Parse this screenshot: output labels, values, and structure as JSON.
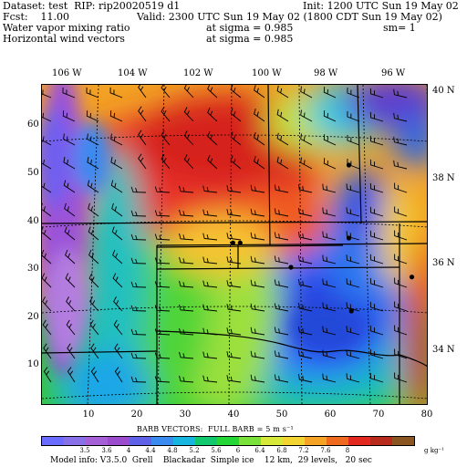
{
  "header": {
    "dataset": "Dataset: test  RIP: rip20020519 d1",
    "init": "Init: 1200 UTC Sun 19 May 02",
    "fcst": "Fcst:    11.00",
    "valid": "Valid: 2300 UTC Sun 19 May 02 (1800 CDT Sun 19 May 02)",
    "field1": "Water vapor mixing ratio",
    "field1_level": "at sigma = 0.985",
    "field1_sm": "sm= 1",
    "field2": "Horizontal wind vectors",
    "field2_level": "at sigma = 0.985"
  },
  "map": {
    "lon_labels": [
      "106 W",
      "104 W",
      "102 W",
      "100 W",
      "98 W",
      "96 W"
    ],
    "lat_labels": [
      "40 N",
      "38 N",
      "36 N",
      "34 N"
    ],
    "y_ticks": [
      "60",
      "50",
      "40",
      "30",
      "20",
      "10"
    ],
    "x_ticks": [
      "10",
      "20",
      "30",
      "40",
      "50",
      "60",
      "70",
      "80"
    ],
    "grid_range": {
      "x": [
        1,
        81
      ],
      "y": [
        1,
        67
      ]
    },
    "stations_grid": [
      [
        64.5,
        50.5
      ],
      [
        40.5,
        34.5
      ],
      [
        42,
        34.5
      ],
      [
        52.5,
        29.5
      ],
      [
        64.5,
        35.5
      ],
      [
        65,
        20.5
      ],
      [
        77.5,
        27.5
      ]
    ]
  },
  "barb_note": "BARB VECTORS:  FULL BARB = 5 m s⁻¹",
  "colorbar": {
    "labels": [
      "3.5",
      "3.6",
      "4",
      "4.4",
      "4.8",
      "5.2",
      "5.6",
      "6",
      "6.4",
      "6.8",
      "7.2",
      "7.6",
      "8"
    ],
    "units": "g kg⁻¹",
    "colors": [
      "#6a6bff",
      "#8870e8",
      "#a560d8",
      "#9b4ccc",
      "#5f62e8",
      "#3a8af0",
      "#17b6e0",
      "#12c86e",
      "#25d637",
      "#7ae03a",
      "#d6e83a",
      "#f2d530",
      "#f4a324",
      "#ef6a1e",
      "#e3281f",
      "#b82a1c",
      "#8a5520"
    ]
  },
  "footer": "Model info: V3.5.0  Grell    Blackadar  Simple ice    12 km,  29 levels,   20 sec"
}
